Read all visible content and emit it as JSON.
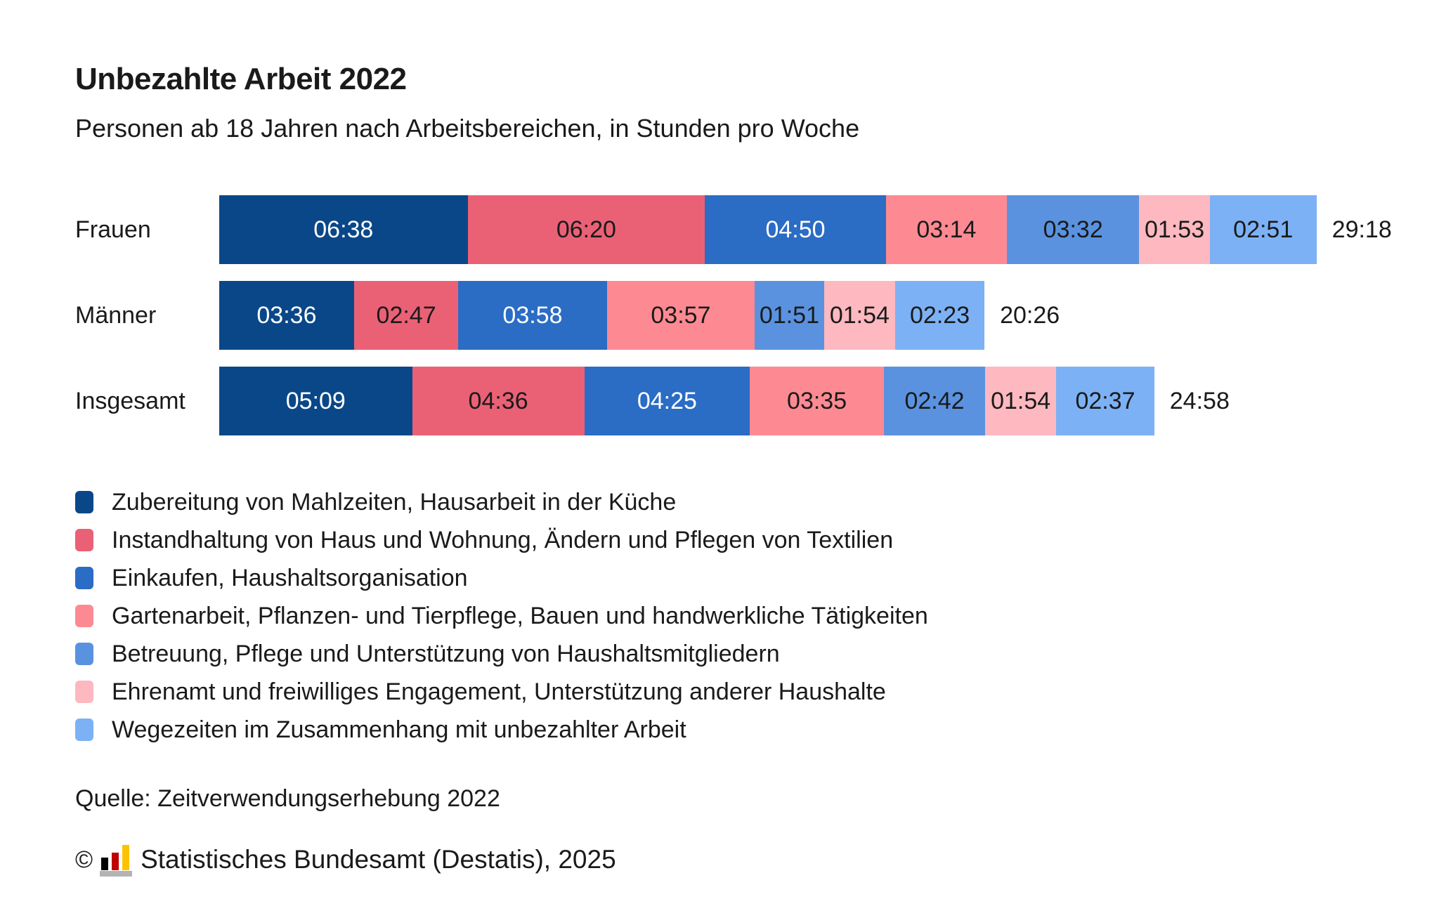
{
  "header": {
    "title": "Unbezahlte Arbeit 2022",
    "subtitle": "Personen ab 18 Jahren nach Arbeitsbereichen, in Stunden pro Woche"
  },
  "chart_data": {
    "type": "bar",
    "orientation": "horizontal",
    "stacked": true,
    "unit": "Stunden:Minuten pro Woche",
    "legend_position": "bottom",
    "grid": false,
    "categories": [
      "Frauen",
      "Männer",
      "Insgesamt"
    ],
    "series": [
      {
        "name": "Zubereitung von Mahlzeiten, Hausarbeit in der Küche",
        "color": "#0a4788",
        "text_color": "#ffffff",
        "values": [
          "06:38",
          "03:36",
          "05:09"
        ]
      },
      {
        "name": "Instandhaltung von Haus und Wohnung, Ändern und Pflegen von Textilien",
        "color": "#ea6176",
        "text_color": "#1a1a1a",
        "values": [
          "06:20",
          "02:47",
          "04:36"
        ]
      },
      {
        "name": "Einkaufen, Haushaltsorganisation",
        "color": "#2b6cc4",
        "text_color": "#ffffff",
        "values": [
          "04:50",
          "03:58",
          "04:25"
        ]
      },
      {
        "name": "Gartenarbeit, Pflanzen- und Tierpflege, Bauen und handwerkliche Tätigkeiten",
        "color": "#fd8a92",
        "text_color": "#1a1a1a",
        "values": [
          "03:14",
          "03:57",
          "03:35"
        ]
      },
      {
        "name": "Betreuung, Pflege und Unterstützung von Haushaltsmitgliedern",
        "color": "#5a92e0",
        "text_color": "#1a1a1a",
        "values": [
          "03:32",
          "01:51",
          "02:42"
        ]
      },
      {
        "name": "Ehrenamt und freiwilliges Engagement, Unterstützung anderer Haushalte",
        "color": "#fdb8c0",
        "text_color": "#1a1a1a",
        "values": [
          "01:53",
          "01:54",
          "01:54"
        ]
      },
      {
        "name": "Wegezeiten im Zusammenhang mit unbezahlter Arbeit",
        "color": "#7cb1f5",
        "text_color": "#1a1a1a",
        "values": [
          "02:51",
          "02:23",
          "02:37"
        ]
      }
    ],
    "totals": [
      "29:18",
      "20:26",
      "24:58"
    ]
  },
  "footer": {
    "source": "Quelle: Zeitverwendungserhebung 2022",
    "copyright_symbol": "©",
    "copyright": "Statistisches Bundesamt (Destatis), 2025"
  },
  "icons": {
    "destatis_logo": {
      "name": "destatis-bar-chart-icon",
      "bar_colors": [
        "#000000",
        "#c00000",
        "#fdc300"
      ],
      "base_color": "#b3b3b3"
    }
  }
}
